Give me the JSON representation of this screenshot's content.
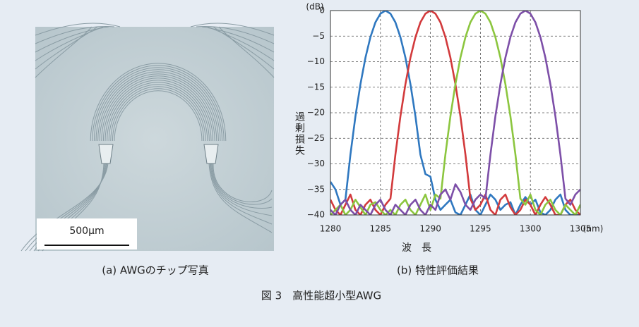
{
  "figure_caption": "図 3　高性能超小型AWG",
  "photo": {
    "caption": "(a)  AWGのチップ写真",
    "scale_bar": "500μm"
  },
  "chart_data": {
    "type": "line",
    "caption": "(b)  特性評価結果",
    "xlabel": "波　長",
    "x_unit": "(nm)",
    "ylabel": "過剰損失",
    "y_unit": "(dB)",
    "x": [
      1280,
      1280.5,
      1281,
      1281.5,
      1282,
      1282.5,
      1283,
      1283.5,
      1284,
      1284.5,
      1285,
      1285.5,
      1286,
      1286.5,
      1287,
      1287.5,
      1288,
      1288.5,
      1289,
      1289.5,
      1290,
      1290.5,
      1291,
      1291.5,
      1292,
      1292.5,
      1293,
      1293.5,
      1294,
      1294.5,
      1295,
      1295.5,
      1296,
      1296.5,
      1297,
      1297.5,
      1298,
      1298.5,
      1299,
      1299.5,
      1300,
      1300.5,
      1301,
      1301.5,
      1302,
      1302.5,
      1303,
      1303.5,
      1304,
      1304.5,
      1305
    ],
    "series": [
      {
        "color": "#2f78c0",
        "values": [
          -33.5,
          -35,
          -38,
          -37,
          -28.2,
          -20.7,
          -14.4,
          -9.2,
          -5.2,
          -2.3,
          -0.6,
          0,
          -0.6,
          -2.3,
          -5.2,
          -9.2,
          -14.4,
          -20.7,
          -28.2,
          -32,
          -32.5,
          -37,
          -39,
          -38,
          -37,
          -39.5,
          -40,
          -38,
          -36,
          -39,
          -40,
          -38,
          -36,
          -37,
          -39,
          -38,
          -37.5,
          -40,
          -38,
          -36.5,
          -38,
          -37,
          -39.5,
          -40,
          -39,
          -37,
          -36,
          -39,
          -40,
          -40,
          -40
        ]
      },
      {
        "color": "#d23a3c",
        "values": [
          -37,
          -39,
          -40,
          -38,
          -36,
          -39,
          -40,
          -38,
          -37,
          -39,
          -40,
          -38,
          -36.8,
          -28.2,
          -20.7,
          -14.4,
          -9.2,
          -5.2,
          -2.3,
          -0.6,
          0,
          -0.6,
          -2.3,
          -5.2,
          -9.2,
          -14.4,
          -20.7,
          -28.2,
          -36.8,
          -39,
          -38,
          -36,
          -39,
          -40,
          -37,
          -36,
          -38.5,
          -40,
          -39,
          -37,
          -38,
          -40,
          -38,
          -36.5,
          -38,
          -40,
          -40,
          -38,
          -37,
          -39,
          -40
        ]
      },
      {
        "color": "#8cc63f",
        "values": [
          -40,
          -39,
          -38,
          -40,
          -39,
          -37,
          -38.5,
          -40,
          -38,
          -37.5,
          -39,
          -40,
          -39,
          -40,
          -38,
          -37,
          -39,
          -40,
          -38,
          -36,
          -39,
          -36,
          -36.8,
          -28.2,
          -20.7,
          -14.4,
          -9.2,
          -5.2,
          -2.3,
          -0.6,
          0,
          -0.6,
          -2.3,
          -5.2,
          -9.2,
          -14.4,
          -20.7,
          -28.2,
          -36.8,
          -38,
          -36,
          -39,
          -40,
          -38,
          -37,
          -39,
          -40,
          -38,
          -39,
          -40,
          -38
        ]
      },
      {
        "color": "#7d4fa8",
        "values": [
          -39,
          -40,
          -38,
          -37,
          -39,
          -40,
          -38,
          -39,
          -40,
          -38,
          -37,
          -39,
          -40,
          -38,
          -39,
          -40,
          -38,
          -37,
          -39,
          -40,
          -38,
          -39,
          -36,
          -35,
          -37,
          -34,
          -35.5,
          -38,
          -39,
          -37,
          -36,
          -36.8,
          -28.2,
          -20.7,
          -14.4,
          -9.2,
          -5.2,
          -2.3,
          -0.6,
          0,
          -0.6,
          -2.3,
          -5.2,
          -9.2,
          -14.4,
          -20.7,
          -28.2,
          -36.8,
          -38,
          -36,
          -35
        ]
      }
    ],
    "xlim": [
      1280,
      1305
    ],
    "xticks": [
      1280,
      1285,
      1290,
      1295,
      1300,
      1305
    ],
    "ylim": [
      -40,
      0
    ],
    "yticks": [
      0,
      {
        "value": -5,
        "label": "−5"
      },
      {
        "value": -10,
        "label": "−10"
      },
      {
        "value": -15,
        "label": "−15"
      },
      {
        "value": -20,
        "label": "−20"
      },
      {
        "value": -25,
        "label": "−25"
      },
      {
        "value": -30,
        "label": "−30"
      },
      {
        "value": -35,
        "label": "−35"
      },
      {
        "value": -40,
        "label": "−40"
      }
    ],
    "grid": true
  }
}
